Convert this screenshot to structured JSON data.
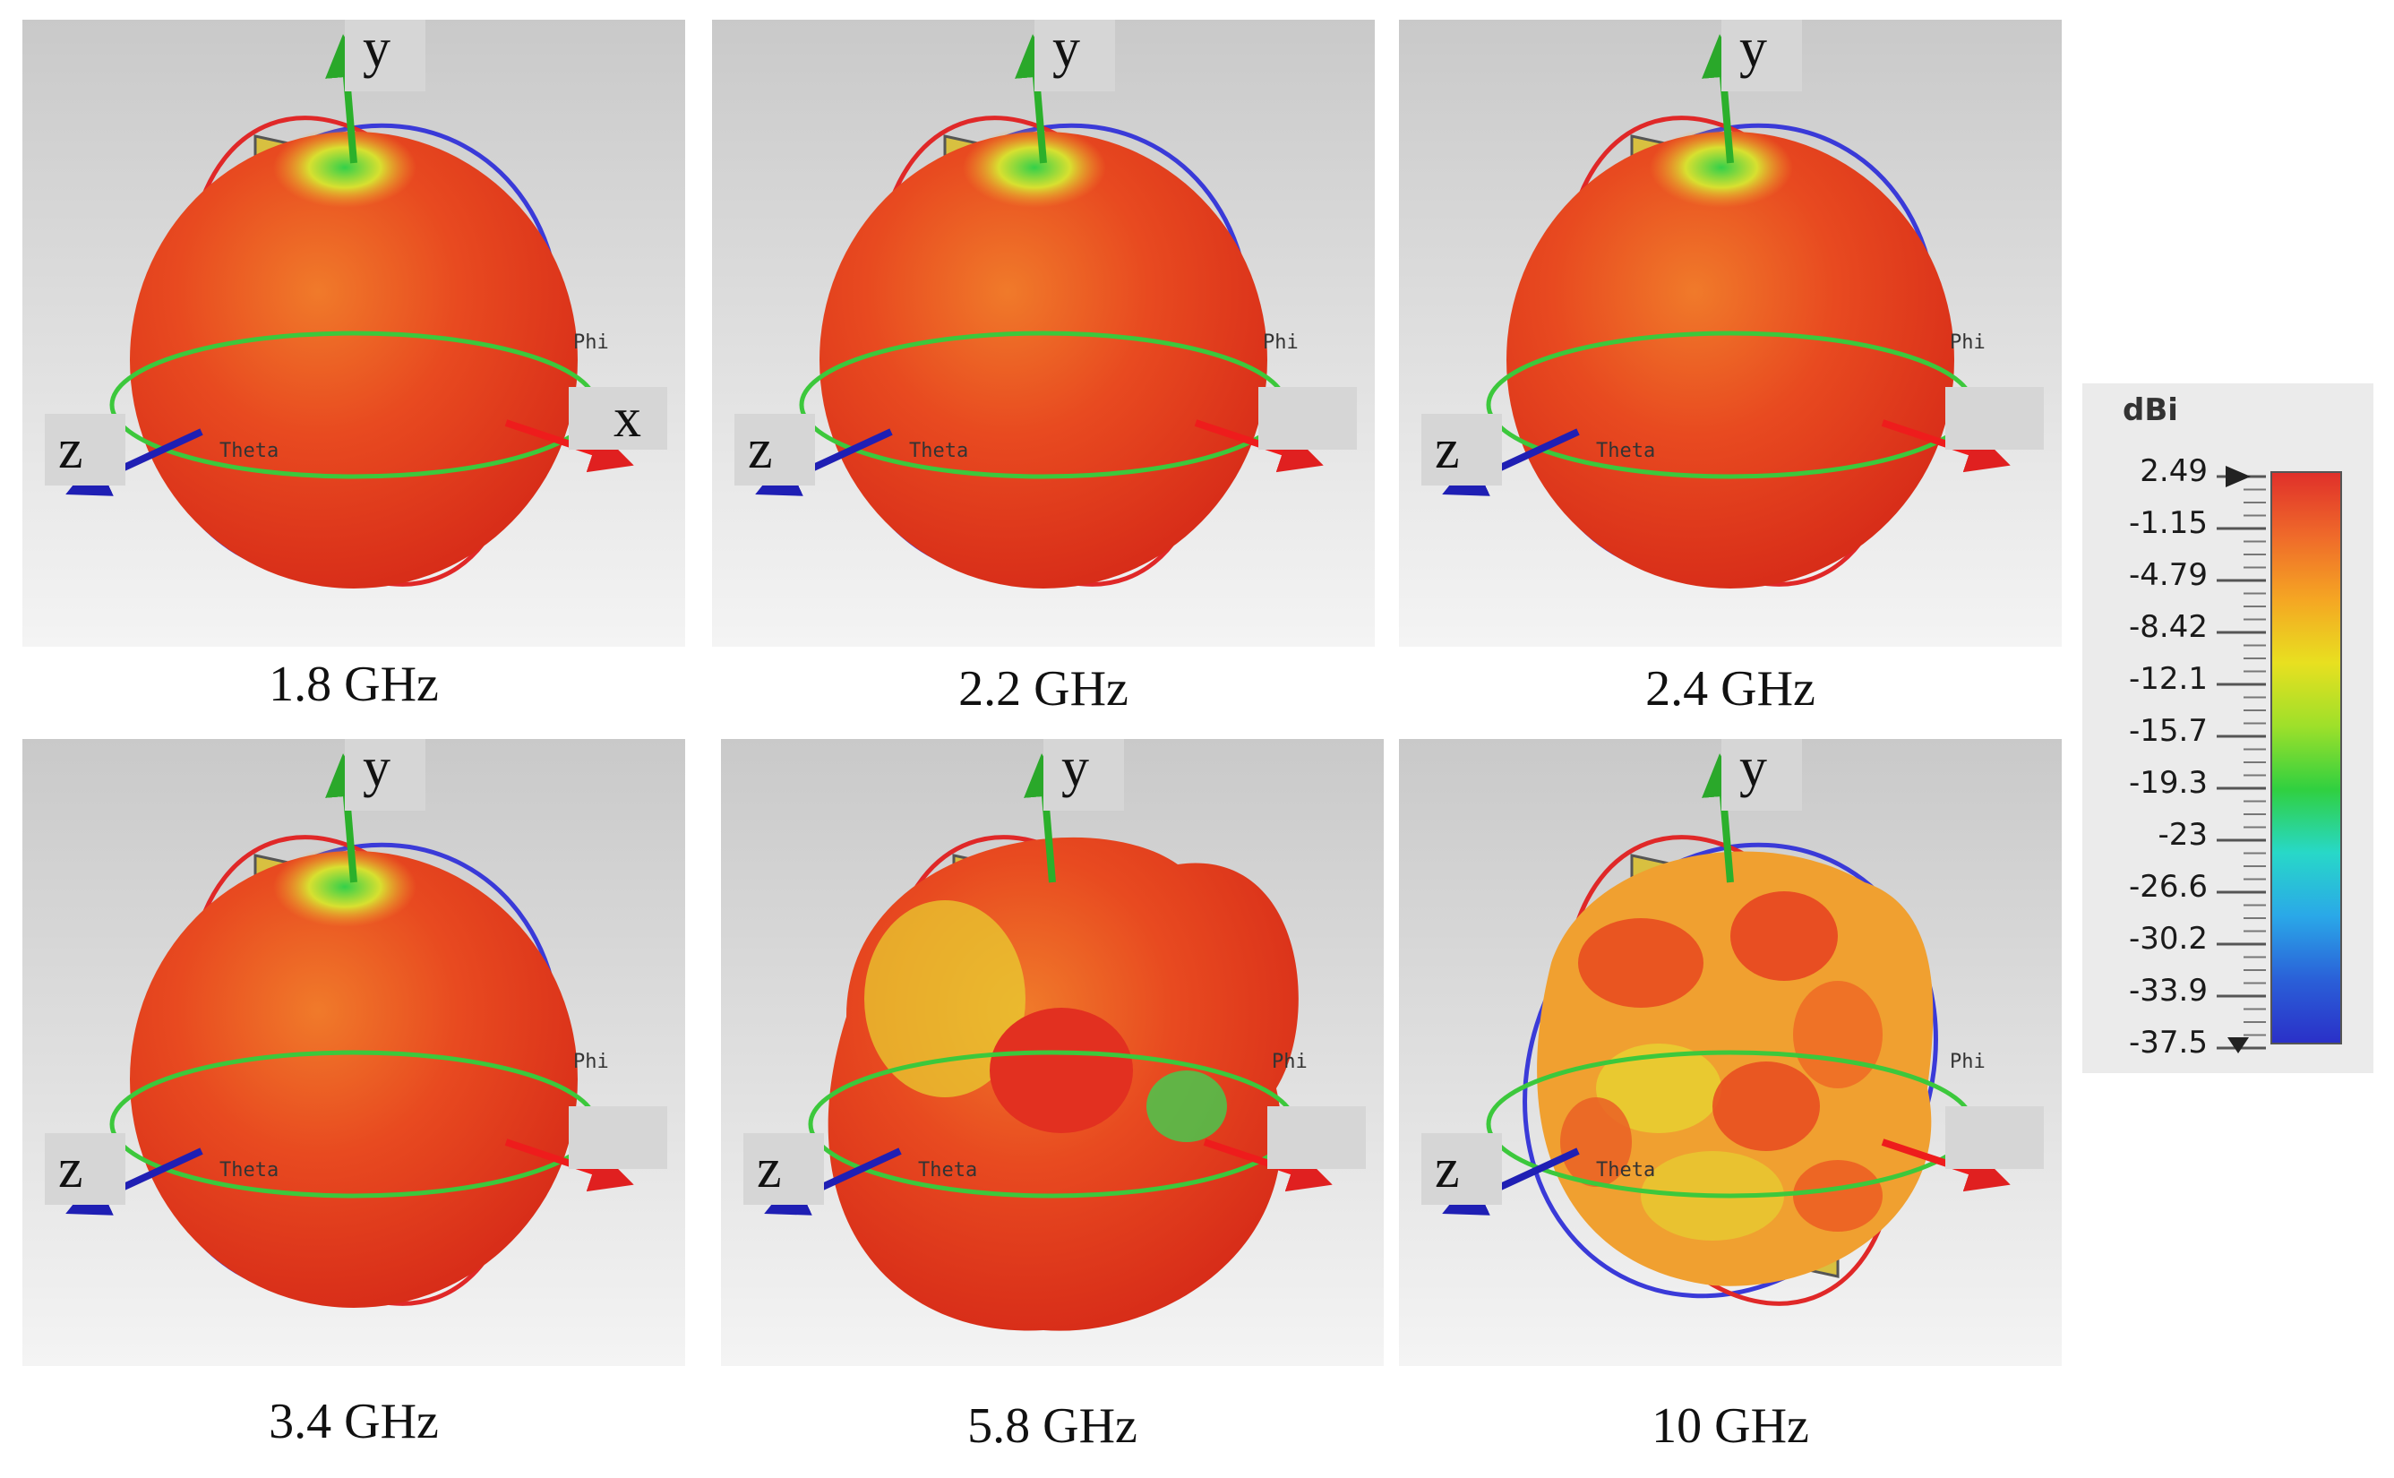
{
  "panels": [
    {
      "caption": "1.8 GHz",
      "pattern": "omni",
      "has_x_label": true
    },
    {
      "caption": "2.2 GHz",
      "pattern": "omni",
      "has_x_label": false
    },
    {
      "caption": "2.4 GHz",
      "pattern": "omni",
      "has_x_label": false
    },
    {
      "caption": "3.4 GHz",
      "pattern": "omni",
      "has_x_label": false
    },
    {
      "caption": "5.8 GHz",
      "pattern": "lobed",
      "has_x_label": false
    },
    {
      "caption": "10 GHz",
      "pattern": "multilobe",
      "has_x_label": false
    }
  ],
  "axis_labels": {
    "y": "y",
    "x": "x",
    "z": "z",
    "theta": "Theta",
    "phi": "Phi"
  },
  "legend": {
    "title": "dBi",
    "ticks": [
      "2.49",
      "-1.15",
      "-4.79",
      "-8.42",
      "-12.1",
      "-15.7",
      "-19.3",
      "-23",
      "-26.6",
      "-30.2",
      "-33.9",
      "-37.5"
    ],
    "colors": [
      "#e0302a",
      "#ef6a2a",
      "#f5a623",
      "#e8e020",
      "#9ee02a",
      "#30d040",
      "#28d8c8",
      "#2aa8e8",
      "#2a60d8",
      "#2a30c8"
    ]
  },
  "colors": {
    "x_axis": "#ee1c1c",
    "y_axis": "#2bb02b",
    "z_axis": "#1f1fb4",
    "ring_blue": "#3a3ad8",
    "ring_red": "#e02828",
    "ring_green": "#3cc83c"
  }
}
